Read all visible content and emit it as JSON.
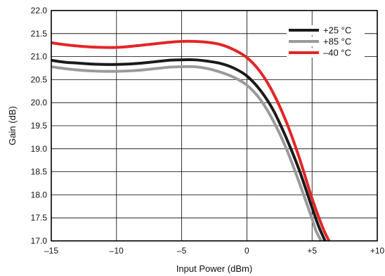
{
  "chart_data": {
    "type": "line",
    "title": "",
    "xlabel": "Input Power (dBm)",
    "ylabel": "Gain (dB)",
    "xlim": [
      -15,
      10
    ],
    "ylim": [
      17.0,
      22.0
    ],
    "grid": true,
    "legend_position": "top-right",
    "x_ticks": [
      -15,
      -10,
      -5,
      0,
      5,
      10
    ],
    "x_tick_labels": [
      "–15",
      "–10",
      "–5",
      "0",
      "+5",
      "+10"
    ],
    "y_ticks": [
      17.0,
      17.5,
      18.0,
      18.5,
      19.0,
      19.5,
      20.0,
      20.5,
      21.0,
      21.5,
      22.0
    ],
    "y_tick_labels": [
      "17.0",
      "17.5",
      "18.0",
      "18.5",
      "19.0",
      "19.5",
      "20.0",
      "20.5",
      "21.0",
      "21.5",
      "22.0"
    ],
    "series": [
      {
        "name": "+25 °C",
        "color": "#1a1a1a",
        "x": [
          -15,
          -14,
          -13,
          -12,
          -11,
          -10,
          -9,
          -8,
          -7,
          -6,
          -5,
          -4,
          -3,
          -2,
          -1,
          0,
          1,
          2,
          3,
          4,
          5,
          5.5,
          6.0
        ],
        "y": [
          20.92,
          20.88,
          20.86,
          20.84,
          20.83,
          20.83,
          20.84,
          20.86,
          20.89,
          20.92,
          20.93,
          20.93,
          20.9,
          20.85,
          20.75,
          20.58,
          20.28,
          19.85,
          19.25,
          18.55,
          17.72,
          17.32,
          17.0
        ]
      },
      {
        "name": "+85 °C",
        "color": "#9a9a9a",
        "x": [
          -15,
          -14,
          -13,
          -12,
          -11,
          -10,
          -9,
          -8,
          -7,
          -6,
          -5,
          -4,
          -3,
          -2,
          -1,
          0,
          1,
          2,
          3,
          4,
          5,
          5.3,
          5.7
        ],
        "y": [
          20.78,
          20.74,
          20.71,
          20.69,
          20.68,
          20.68,
          20.69,
          20.71,
          20.74,
          20.77,
          20.78,
          20.78,
          20.74,
          20.66,
          20.55,
          20.38,
          20.08,
          19.62,
          19.02,
          18.28,
          17.48,
          17.22,
          17.0
        ]
      },
      {
        "name": "–40 °C",
        "color": "#e32526",
        "x": [
          -15,
          -14,
          -13,
          -12,
          -11,
          -10,
          -9,
          -8,
          -7,
          -6,
          -5,
          -4,
          -3,
          -2,
          -1,
          0,
          1,
          2,
          3,
          4,
          5,
          5.8,
          6.3
        ],
        "y": [
          21.3,
          21.26,
          21.23,
          21.21,
          21.2,
          21.2,
          21.22,
          21.25,
          21.28,
          21.31,
          21.33,
          21.33,
          21.31,
          21.26,
          21.15,
          20.98,
          20.68,
          20.22,
          19.6,
          18.82,
          17.92,
          17.3,
          17.0
        ]
      }
    ]
  }
}
